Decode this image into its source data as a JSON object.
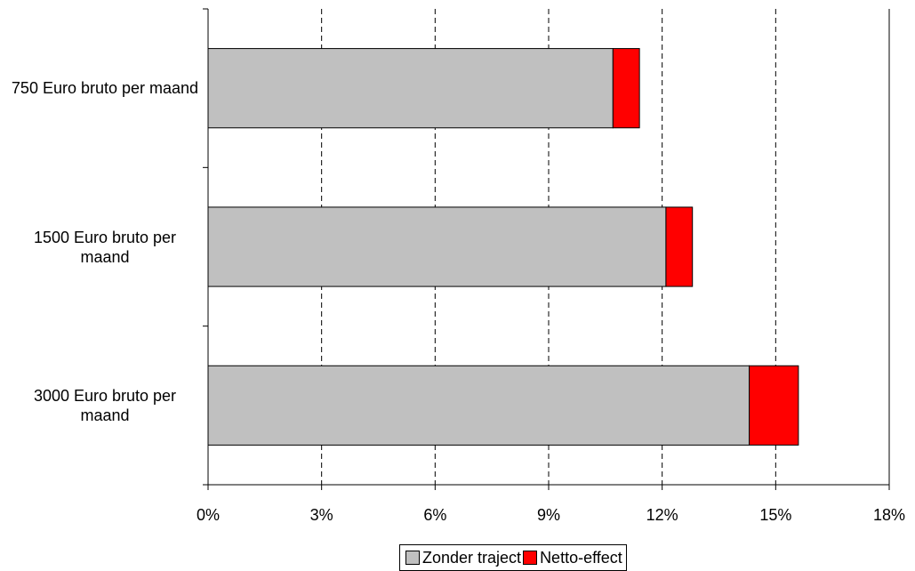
{
  "chart_data": {
    "type": "stacked-bar-horizontal",
    "categories": [
      "750 Euro bruto per maand",
      "1500 Euro bruto per maand",
      "3000 Euro bruto per maand"
    ],
    "series": [
      {
        "name": "Zonder traject",
        "color": "#c0c0c0",
        "values": [
          10.7,
          12.1,
          14.3
        ]
      },
      {
        "name": "Netto-effect",
        "color": "#ff0000",
        "values": [
          0.7,
          0.7,
          1.3
        ]
      }
    ],
    "xlim": [
      0,
      18
    ],
    "xticks": [
      {
        "value": 0,
        "label": "0%"
      },
      {
        "value": 3,
        "label": "3%"
      },
      {
        "value": 6,
        "label": "6%"
      },
      {
        "value": 9,
        "label": "9%"
      },
      {
        "value": 12,
        "label": "12%"
      },
      {
        "value": 15,
        "label": "15%"
      },
      {
        "value": 18,
        "label": "18%"
      }
    ],
    "grid": true,
    "legend": "bottom"
  }
}
